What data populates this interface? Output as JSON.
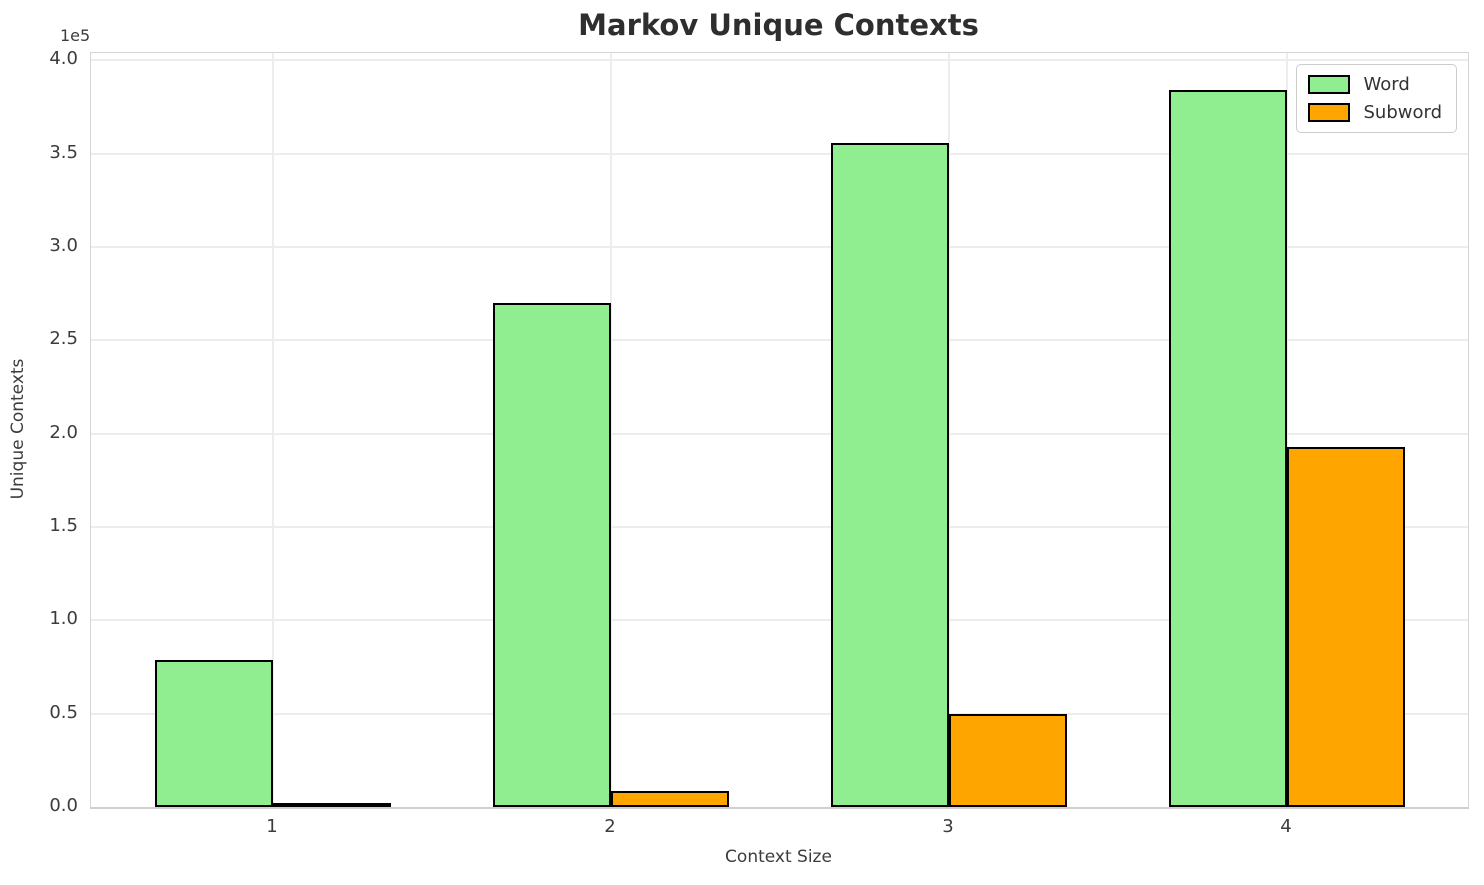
{
  "chart_data": {
    "type": "bar",
    "title": "Markov Unique Contexts",
    "xlabel": "Context Size",
    "ylabel": "Unique Contexts",
    "y_offset_text": "1e5",
    "categories": [
      "1",
      "2",
      "3",
      "4"
    ],
    "series": [
      {
        "name": "Word",
        "color": "#90EE90",
        "values": [
          79000,
          270000,
          356000,
          384000
        ]
      },
      {
        "name": "Subword",
        "color": "#FFA500",
        "values": [
          1500,
          8600,
          50000,
          193000
        ]
      }
    ],
    "bar_edge_color": "#000000",
    "ylim": [
      0,
      404000
    ],
    "yticks": {
      "values": [
        0,
        50000,
        100000,
        150000,
        200000,
        250000,
        300000,
        350000,
        400000
      ],
      "labels": [
        "0.0",
        "0.5",
        "1.0",
        "1.5",
        "2.0",
        "2.5",
        "3.0",
        "3.5",
        "4.0"
      ]
    },
    "grid": true,
    "legend_position": "upper right"
  }
}
